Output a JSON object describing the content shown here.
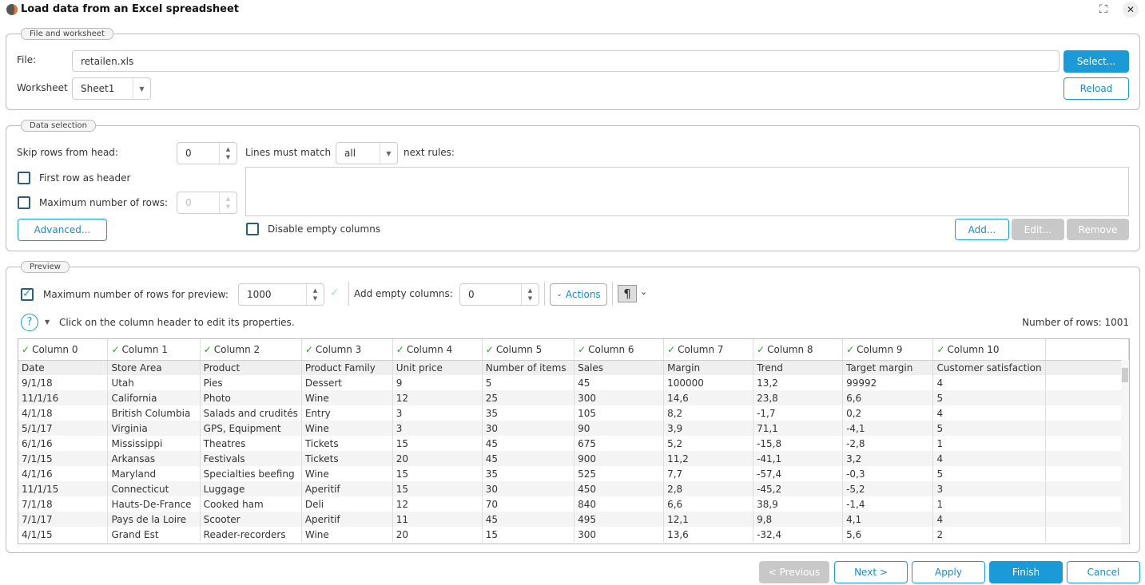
{
  "window": {
    "title": "Load data from an Excel spreadsheet"
  },
  "file_section": {
    "legend": "File and worksheet",
    "file_label": "File:",
    "file_value": "retailen.xls",
    "select_label": "Select...",
    "worksheet_label": "Worksheet",
    "worksheet_value": "Sheet1",
    "reload_label": "Reload"
  },
  "data_selection": {
    "legend": "Data selection",
    "skip_rows_label": "Skip rows from head:",
    "skip_rows_value": "0",
    "first_row_header_label": "First row as header",
    "first_row_header_checked": false,
    "max_rows_label": "Maximum number of rows:",
    "max_rows_value": "0",
    "max_rows_checked": false,
    "advanced_label": "Advanced...",
    "lines_must_match_label": "Lines must match",
    "match_value": "all",
    "next_rules_label": "next rules:",
    "disable_empty_label": "Disable empty columns",
    "disable_empty_checked": false,
    "add_label": "Add...",
    "edit_label": "Edit...",
    "remove_label": "Remove"
  },
  "preview": {
    "legend": "Preview",
    "max_rows_preview_label": "Maximum number of rows for preview:",
    "max_rows_preview_checked": true,
    "max_rows_preview_value": "1000",
    "add_empty_label": "Add empty columns:",
    "add_empty_value": "0",
    "actions_label": "Actions",
    "pilcrow": "¶",
    "hint": "Click on the column header to edit its properties.",
    "row_count": "Number of rows: 1001",
    "columns": [
      "Column 0",
      "Column 1",
      "Column 2",
      "Column 3",
      "Column 4",
      "Column 5",
      "Column 6",
      "Column 7",
      "Column 8",
      "Column 9",
      "Column 10"
    ],
    "header_row": [
      "Date",
      "Store Area",
      "Product",
      "Product Family",
      "Unit price",
      "Number of items",
      "Sales",
      "Margin",
      "Trend",
      "Target margin",
      "Customer satisfaction"
    ],
    "rows": [
      [
        "9/1/18",
        "Utah",
        "Pies",
        "Dessert",
        "9",
        "5",
        "45",
        "100000",
        "13,2",
        "99992",
        "4"
      ],
      [
        "11/1/16",
        "California",
        "Photo",
        "Wine",
        "12",
        "25",
        "300",
        "14,6",
        "23,8",
        "6,6",
        "5"
      ],
      [
        "4/1/18",
        "British Columbia",
        "Salads and crudités",
        "Entry",
        "3",
        "35",
        "105",
        "8,2",
        "-1,7",
        "0,2",
        "4"
      ],
      [
        "5/1/17",
        "Virginia",
        "GPS, Equipment",
        "Wine",
        "3",
        "30",
        "90",
        "3,9",
        "71,1",
        "-4,1",
        "5"
      ],
      [
        "6/1/16",
        "Mississippi",
        "Theatres",
        "Tickets",
        "15",
        "45",
        "675",
        "5,2",
        "-15,8",
        "-2,8",
        "1"
      ],
      [
        "7/1/15",
        "Arkansas",
        "Festivals",
        "Tickets",
        "20",
        "45",
        "900",
        "11,2",
        "-41,1",
        "3,2",
        "4"
      ],
      [
        "4/1/16",
        "Maryland",
        "Specialties beefing",
        "Wine",
        "15",
        "35",
        "525",
        "7,7",
        "-57,4",
        "-0,3",
        "5"
      ],
      [
        "11/1/15",
        "Connecticut",
        "Luggage",
        "Aperitif",
        "15",
        "30",
        "450",
        "2,8",
        "-45,2",
        "-5,2",
        "3"
      ],
      [
        "7/1/18",
        "Hauts-De-France",
        "Cooked ham",
        "Deli",
        "12",
        "70",
        "840",
        "6,6",
        "38,9",
        "-1,4",
        "1"
      ],
      [
        "7/1/17",
        "Pays de la Loire",
        "Scooter",
        "Aperitif",
        "11",
        "45",
        "495",
        "12,1",
        "9,8",
        "4,1",
        "4"
      ],
      [
        "4/1/15",
        "Grand Est",
        "Reader-recorders",
        "Wine",
        "20",
        "15",
        "300",
        "13,6",
        "-32,4",
        "5,6",
        "2"
      ]
    ]
  },
  "footer": {
    "previous": "< Previous",
    "next": "Next >",
    "apply": "Apply",
    "finish": "Finish",
    "cancel": "Cancel"
  },
  "colors": {
    "accent": "#1a9ad6",
    "disabled": "#c8c8c8",
    "check": "#2a9a2a"
  }
}
